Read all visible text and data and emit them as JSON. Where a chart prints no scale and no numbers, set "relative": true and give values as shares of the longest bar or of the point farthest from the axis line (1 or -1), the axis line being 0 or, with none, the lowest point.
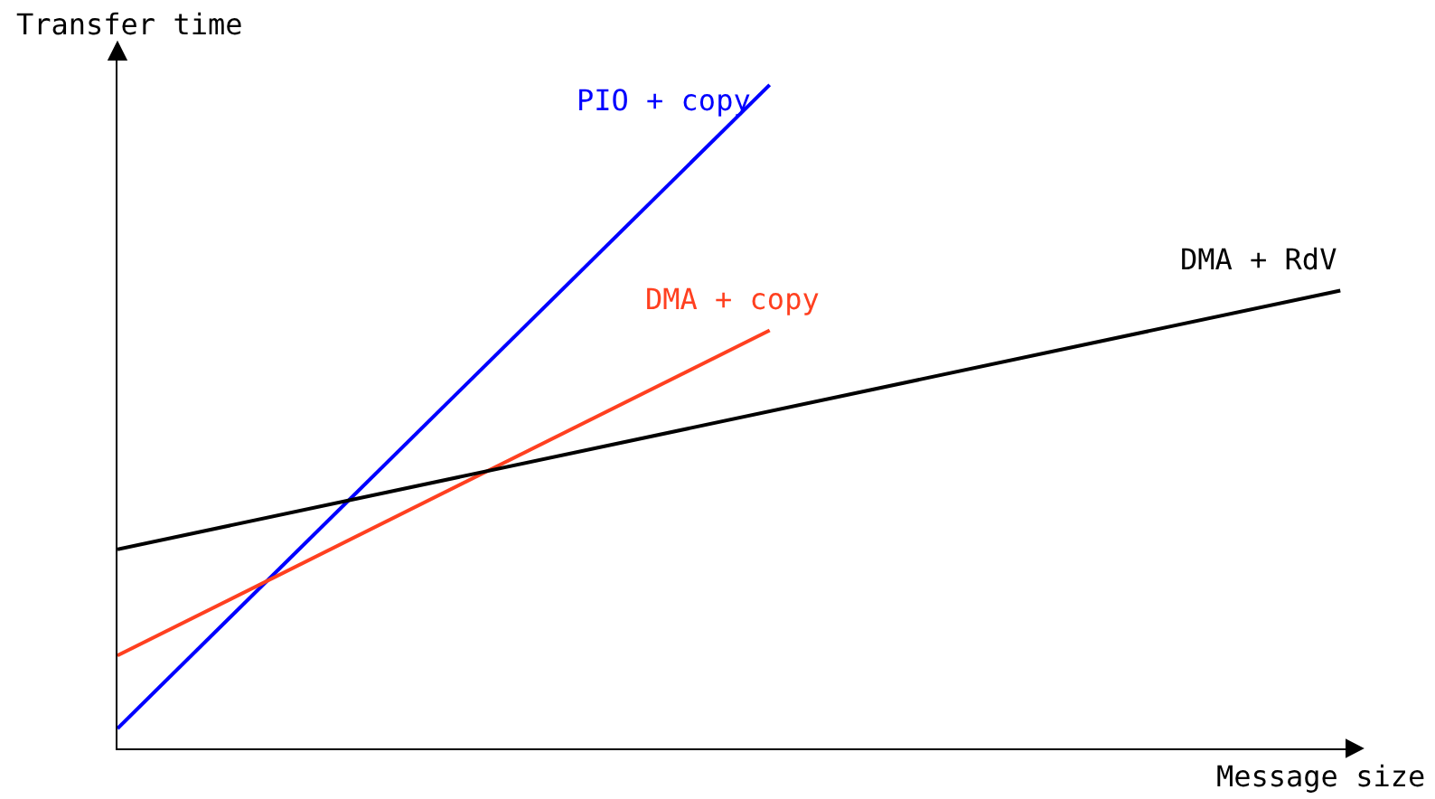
{
  "chart_data": {
    "type": "line",
    "relative": true,
    "xlabel": "Message size",
    "ylabel": "Transfer time",
    "legend": false,
    "marker": "none",
    "line_style": "solid",
    "categories": [
      null,
      null,
      null,
      null,
      null,
      null,
      null,
      null,
      null,
      null,
      null,
      null,
      null,
      null,
      null,
      null
    ],
    "series": [
      {
        "name": "PIO + copy",
        "color": "#0000ff",
        "values": [
          0.03,
          null,
          null,
          null,
          null,
          null,
          null,
          null,
          1.0,
          null,
          null,
          null,
          null,
          null,
          null,
          null
        ]
      },
      {
        "name": "DMA + copy",
        "color": "#ff4020",
        "values": [
          0.14,
          null,
          null,
          null,
          null,
          null,
          null,
          null,
          0.63,
          null,
          null,
          null,
          null,
          null,
          null,
          null
        ]
      },
      {
        "name": "DMA + RdV",
        "color": "#000000",
        "values": [
          0.3,
          null,
          null,
          null,
          null,
          null,
          null,
          null,
          null,
          null,
          null,
          null,
          null,
          null,
          null,
          0.69
        ]
      }
    ]
  }
}
